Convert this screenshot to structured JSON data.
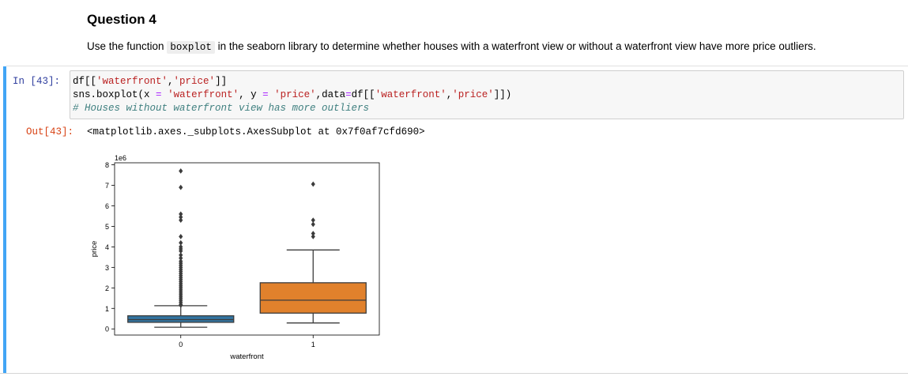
{
  "markdown": {
    "heading": "Question 4",
    "text_before": "Use the function ",
    "code_word": "boxplot",
    "text_after": " in the seaborn library to determine whether houses with a waterfront view or without a waterfront view have more price outliers."
  },
  "cell": {
    "in_prompt": "In [43]:",
    "out_prompt": "Out[43]:",
    "code_line1": {
      "a": "df[[",
      "s1": "'waterfront'",
      "b": ",",
      "s2": "'price'",
      "c": "]]"
    },
    "code_line2": {
      "a": "sns.boxplot(x ",
      "eq1": "=",
      "b": " ",
      "s1": "'waterfront'",
      "c": ", y ",
      "eq2": "=",
      "d": " ",
      "s2": "'price'",
      "e": ",data",
      "eq3": "=",
      "f": "df[[",
      "s3": "'waterfront'",
      "g": ",",
      "s4": "'price'",
      "h": "]])"
    },
    "code_line3": "# Houses without waterfront view has more outliers",
    "output_text": "<matplotlib.axes._subplots.AxesSubplot at 0x7f0af7cfd690>"
  },
  "colors": {
    "box0": "#3274a1",
    "box1": "#e1812c",
    "line": "#3c3c3c"
  },
  "chart_data": {
    "type": "box",
    "xlabel": "waterfront",
    "ylabel": "price",
    "offset_label": "1e6",
    "ylim": [
      -0.3,
      8.1
    ],
    "yticks": [
      0,
      1,
      2,
      3,
      4,
      5,
      6,
      7,
      8
    ],
    "categories": [
      "0",
      "1"
    ],
    "boxes": [
      {
        "category": "0",
        "whisker_low": 0.08,
        "q1": 0.32,
        "median": 0.45,
        "q3": 0.64,
        "whisker_high": 1.13,
        "outliers": [
          1.15,
          1.2,
          1.3,
          1.4,
          1.5,
          1.6,
          1.7,
          1.8,
          1.9,
          2.0,
          2.1,
          2.2,
          2.3,
          2.4,
          2.5,
          2.6,
          2.7,
          2.8,
          2.9,
          3.0,
          3.1,
          3.2,
          3.3,
          3.45,
          3.6,
          3.8,
          3.9,
          4.0,
          4.2,
          4.5,
          5.3,
          5.45,
          5.6,
          6.9,
          7.7
        ]
      },
      {
        "category": "1",
        "whisker_low": 0.29,
        "q1": 0.77,
        "median": 1.4,
        "q3": 2.25,
        "whisker_high": 3.85,
        "outliers": [
          4.5,
          4.65,
          5.1,
          5.3,
          7.06
        ]
      }
    ]
  }
}
